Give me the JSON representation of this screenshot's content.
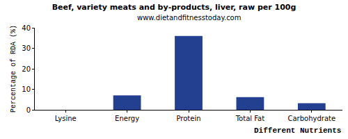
{
  "chart_data": {
    "type": "bar",
    "title": "Beef, variety meats and by-products, liver, raw per 100g",
    "subtitle": "www.dietandfitnesstoday.com",
    "x_label": "Different Nutrients",
    "y_label": "Percentage of RDA (%)",
    "categories": [
      "Lysine",
      "Energy",
      "Protein",
      "Total Fat",
      "Carbohydrate"
    ],
    "values": [
      0,
      7,
      36,
      6.2,
      3.2
    ],
    "color": "#233f8f",
    "ylim": [
      0,
      40
    ],
    "yticks": [
      0,
      10,
      20,
      30,
      40
    ],
    "grid": false
  }
}
